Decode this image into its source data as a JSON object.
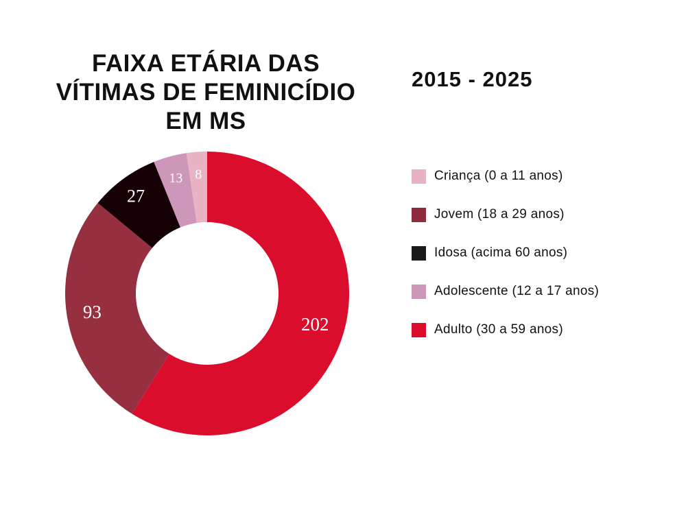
{
  "title_lines": [
    "FAIXA ETÁRIA DAS",
    "VÍTIMAS DE FEMINICÍDIO",
    "EM MS"
  ],
  "period": "2015 - 2025",
  "legend": [
    {
      "label": "Criança (0 a 11 anos)",
      "color": "#e8b3c2"
    },
    {
      "label": "Jovem (18 a 29 anos)",
      "color": "#8e2c3d"
    },
    {
      "label": "Idosa (acima 60 anos)",
      "color": "#1a1a1a"
    },
    {
      "label": "Adolescente (12 a 17 anos)",
      "color": "#cc97b9"
    },
    {
      "label": "Adulto (30 a 59 anos)",
      "color": "#db0d2c"
    }
  ],
  "chart_data": {
    "type": "pie",
    "title": "FAIXA ETÁRIA DAS VÍTIMAS DE FEMINICÍDIO EM MS",
    "subtitle": "2015 - 2025",
    "donut": true,
    "legend_position": "right",
    "slices_clockwise_from_top": [
      {
        "label": "Adulto (30 a 59 anos)",
        "value": 202,
        "color": "#db0d2c"
      },
      {
        "label": "Jovem (18 a 29 anos)",
        "value": 93,
        "color": "#962f3f"
      },
      {
        "label": "Idosa (acima 60 anos)",
        "value": 27,
        "color": "#150006"
      },
      {
        "label": "Adolescente (12 a 17 anos)",
        "value": 13,
        "color": "#cc97b9"
      },
      {
        "label": "Criança (0 a 11 anos)",
        "value": 8,
        "color": "#e8b3c2"
      }
    ]
  }
}
